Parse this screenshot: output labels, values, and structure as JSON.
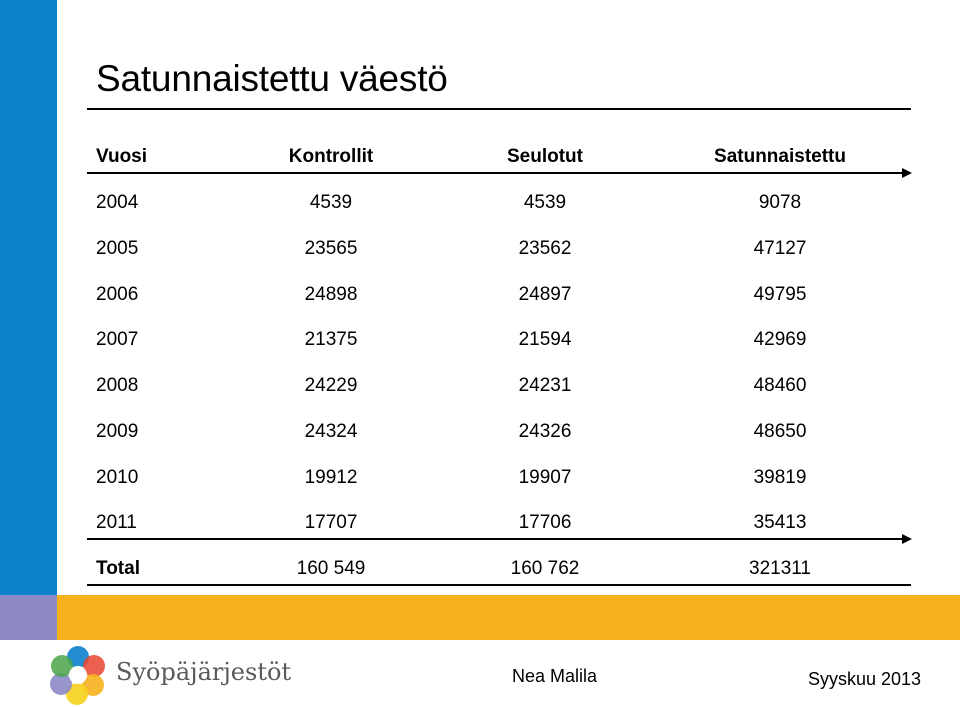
{
  "slide": {
    "title": "Satunnaistettu väestö"
  },
  "table": {
    "headers": [
      "Vuosi",
      "Kontrollit",
      "Seulotut",
      "Satunnaistettu"
    ],
    "rows": [
      [
        "2004",
        "4539",
        "4539",
        "9078"
      ],
      [
        "2005",
        "23565",
        "23562",
        "47127"
      ],
      [
        "2006",
        "24898",
        "24897",
        "49795"
      ],
      [
        "2007",
        "21375",
        "21594",
        "42969"
      ],
      [
        "2008",
        "24229",
        "24231",
        "48460"
      ],
      [
        "2009",
        "24324",
        "24326",
        "48650"
      ],
      [
        "2010",
        "19912",
        "19907",
        "39819"
      ],
      [
        "2011",
        "17707",
        "17706",
        "35413"
      ]
    ],
    "total": [
      "Total",
      "160 549",
      "160 762",
      "321311"
    ]
  },
  "footer": {
    "org_name": "Syöpäjärjestöt",
    "author": "Nea Malila",
    "date": "Syyskuu 2013"
  },
  "colors": {
    "sidebar_blue": "#0a82cc",
    "sidebar_purple": "#8c89c5",
    "band_orange": "#f6b11d"
  }
}
